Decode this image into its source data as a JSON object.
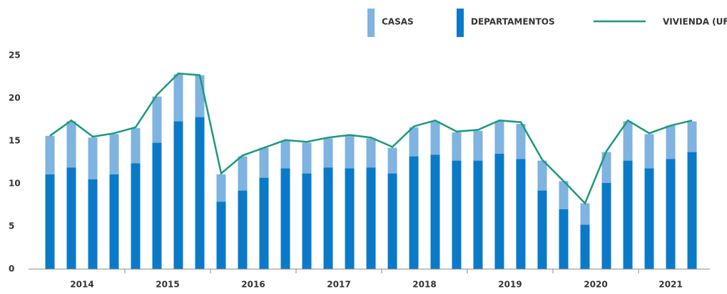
{
  "chart_data": {
    "type": "bar",
    "series": [
      {
        "name": "CASAS",
        "color": "#7fb3e0",
        "values": [
          4.5,
          5.4,
          4.9,
          4.7,
          4.1,
          5.4,
          5.5,
          4.9,
          3.2,
          4.0,
          3.5,
          3.2,
          3.6,
          3.4,
          3.9,
          3.4,
          3.0,
          3.4,
          3.9,
          3.3,
          3.5,
          3.8,
          4.1,
          3.5,
          3.3,
          2.5,
          3.6,
          4.6,
          4.0,
          3.9,
          3.6
        ]
      },
      {
        "name": "DEPARTAMENTOS",
        "color": "#0a7ac8",
        "values": [
          11.1,
          11.9,
          10.5,
          11.1,
          12.4,
          14.8,
          17.3,
          17.8,
          7.9,
          9.2,
          10.7,
          11.8,
          11.2,
          11.9,
          11.8,
          11.9,
          11.2,
          13.2,
          13.4,
          12.7,
          12.7,
          13.5,
          12.9,
          9.2,
          7.0,
          5.2,
          10.1,
          12.7,
          11.8,
          12.9,
          13.7
        ]
      },
      {
        "name": "VIVIENDA (UF)",
        "type": "line",
        "color": "#1a9a7c",
        "values": [
          15.6,
          17.4,
          15.5,
          15.9,
          16.6,
          20.4,
          22.9,
          22.7,
          11.2,
          13.3,
          14.2,
          15.1,
          14.9,
          15.4,
          15.7,
          15.4,
          14.3,
          16.7,
          17.4,
          16.1,
          16.3,
          17.4,
          17.2,
          12.8,
          10.3,
          7.7,
          13.8,
          17.4,
          15.9,
          16.8,
          17.4
        ]
      }
    ],
    "year_labels": [
      "2014",
      "2015",
      "2016",
      "2017",
      "2018",
      "2019",
      "2020",
      "2021"
    ],
    "ylim": [
      0,
      25
    ],
    "yticks": [
      0,
      5,
      10,
      15,
      20,
      25
    ],
    "stacked": true,
    "legend": "top"
  }
}
